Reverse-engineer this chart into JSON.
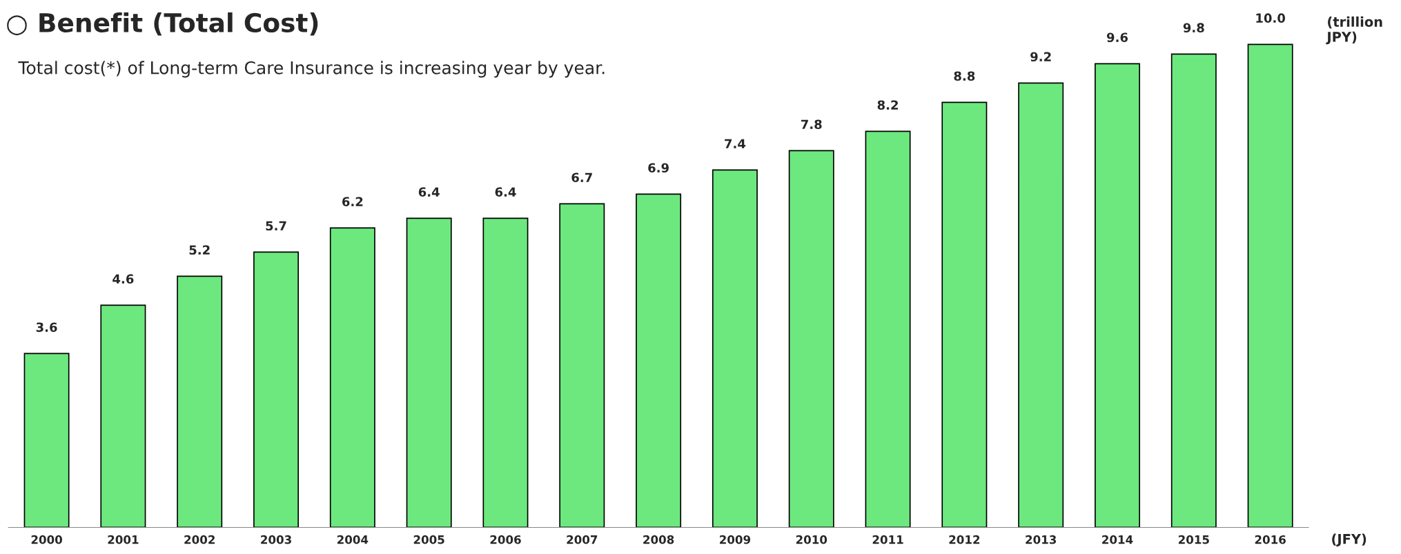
{
  "chart_data": {
    "type": "bar",
    "title": "○ Benefit (Total Cost)",
    "subtitle": "Total cost(*) of Long-term Care Insurance is increasing year by year.",
    "ylabel": "(trillion\nJPY)",
    "xlabel": "(JFY)",
    "categories": [
      "2000",
      "2001",
      "2002",
      "2003",
      "2004",
      "2005",
      "2006",
      "2007",
      "2008",
      "2009",
      "2010",
      "2011",
      "2012",
      "2013",
      "2014",
      "2015",
      "2016"
    ],
    "values": [
      3.6,
      4.6,
      5.2,
      5.7,
      6.2,
      6.4,
      6.4,
      6.7,
      6.9,
      7.4,
      7.8,
      8.2,
      8.8,
      9.2,
      9.6,
      9.8,
      10.0
    ],
    "value_labels": [
      "3.6",
      "4.6",
      "5.2",
      "5.7",
      "6.2",
      "6.4",
      "6.4",
      "6.7",
      "6.9",
      "7.4",
      "7.8",
      "8.2",
      "8.8",
      "9.2",
      "9.6",
      "9.8",
      "10.0"
    ],
    "color": "#6ce87f",
    "grid": false,
    "legend": false
  }
}
